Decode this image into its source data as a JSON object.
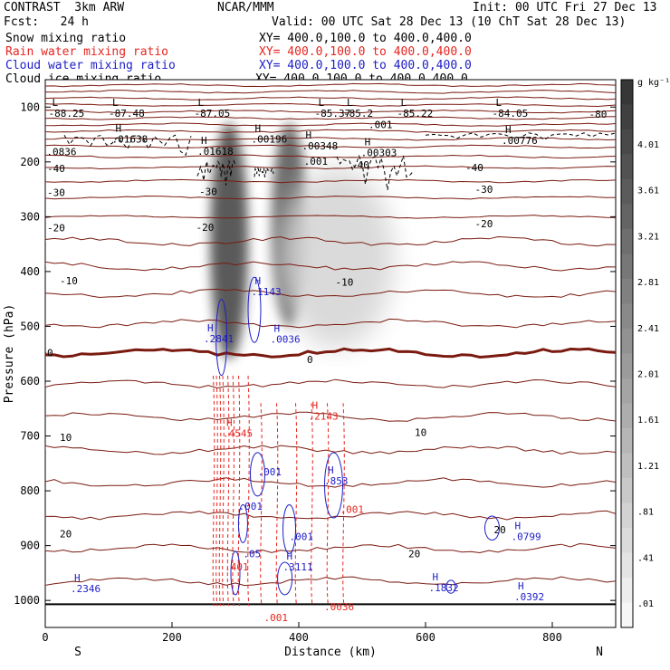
{
  "header": {
    "model": "CONTRAST  3km ARW",
    "org": "NCAR/MMM",
    "init": "Init: 00 UTC Fri 27 Dec 13",
    "fcst": "Fcst:   24 h",
    "valid": "Valid: 00 UTC Sat 28 Dec 13 (10 ChT Sat 28 Dec 13)"
  },
  "legend": [
    {
      "name": "Snow mixing ratio",
      "xy": "",
      "color": "#000000"
    },
    {
      "name": "Rain water mixing ratio",
      "xy": "XY= 400.0,100.0 to 400.0,400.0",
      "color": "#e8251f"
    },
    {
      "name": "Cloud water mixing ratio",
      "xy": "XY= 400.0,100.0 to 400.0,400.0",
      "color": "#1d1dc8"
    },
    {
      "name": "Cloud ice mixing ratio",
      "xy": "XY= 400.0,100.0 to 400.0,400.0",
      "color": "#000000"
    }
  ],
  "first_xy": "XY= 400.0,100.0 to 400.0,400.0",
  "colorbar": {
    "unit": "g kg⁻¹",
    "labels": [
      "4.01",
      "3.61",
      "3.21",
      "2.81",
      "2.41",
      "2.01",
      "1.61",
      "1.21",
      ".81",
      ".41",
      ".01"
    ]
  },
  "chart_data": {
    "type": "contour",
    "xlabel": "Distance (km)",
    "ylabel": "Pressure (hPa)",
    "xlim": [
      0,
      900
    ],
    "ylim": [
      1000,
      50
    ],
    "xticks": [
      "0",
      "200",
      "400",
      "600",
      "800"
    ],
    "xtick_values": [
      0,
      200,
      400,
      600,
      800
    ],
    "yticks": [
      "100",
      "200",
      "300",
      "400",
      "500",
      "600",
      "700",
      "800",
      "900",
      "1000"
    ],
    "ytick_values": [
      100,
      200,
      300,
      400,
      500,
      600,
      700,
      800,
      900,
      1000
    ],
    "left_end": "S",
    "right_end": "N",
    "temperature_isotherms": {
      "color": "#7a1a10",
      "levels_hPa": [
        60,
        72,
        84,
        96,
        108,
        120,
        132,
        144,
        158,
        172,
        190,
        210,
        235,
        265,
        300,
        345,
        390,
        440,
        495,
        548,
        605,
        665,
        725,
        785,
        845,
        905,
        965
      ],
      "labels": [
        {
          "text": "-80",
          "x": 855,
          "p": 113
        },
        {
          "text": "-40",
          "x": 0,
          "p": 212
        },
        {
          "text": "-40",
          "x": 480,
          "p": 205
        },
        {
          "text": "-40",
          "x": 660,
          "p": 210
        },
        {
          "text": "-30",
          "x": 0,
          "p": 256
        },
        {
          "text": "-30",
          "x": 240,
          "p": 254
        },
        {
          "text": "-30",
          "x": 675,
          "p": 250
        },
        {
          "text": "-20",
          "x": 0,
          "p": 320
        },
        {
          "text": "-20",
          "x": 235,
          "p": 319
        },
        {
          "text": "-20",
          "x": 675,
          "p": 313
        },
        {
          "text": "-10",
          "x": 20,
          "p": 417
        },
        {
          "text": "-10",
          "x": 455,
          "p": 419
        },
        {
          "text": "0",
          "x": 0,
          "p": 548
        },
        {
          "text": "0",
          "x": 410,
          "p": 560
        },
        {
          "text": "10",
          "x": 20,
          "p": 702
        },
        {
          "text": "10",
          "x": 580,
          "p": 693
        },
        {
          "text": "20",
          "x": 20,
          "p": 878
        },
        {
          "text": "20",
          "x": 705,
          "p": 871
        },
        {
          "text": "20",
          "x": 570,
          "p": 915
        }
      ]
    },
    "cloud_ice_extrema": [
      {
        "kind": "L",
        "value": "-88.25",
        "x": 5,
        "p": 113
      },
      {
        "kind": "L",
        "value": "-87.48",
        "x": 100,
        "p": 113
      },
      {
        "kind": "L",
        "value": "-87.05",
        "x": 235,
        "p": 113
      },
      {
        "kind": "L",
        "value": "-85.2",
        "x": 470,
        "p": 113
      },
      {
        "kind": "L",
        "value": "-85.37",
        "x": 425,
        "p": 113
      },
      {
        "kind": "L",
        "value": "-85.22",
        "x": 555,
        "p": 113
      },
      {
        "kind": "L",
        "value": "-84.05",
        "x": 705,
        "p": 113
      },
      {
        "kind": "H",
        "value": ".01638",
        "x": 105,
        "p": 160
      },
      {
        "kind": "H",
        "value": ".00196",
        "x": 325,
        "p": 160
      },
      {
        "kind": "H",
        "value": ".00348",
        "x": 405,
        "p": 172
      },
      {
        "kind": "H",
        "value": ".00776",
        "x": 720,
        "p": 162
      },
      {
        "kind": "H",
        "value": ".01618",
        "x": 240,
        "p": 182
      },
      {
        "kind": "H",
        "value": ".00303",
        "x": 498,
        "p": 185
      },
      {
        "kind": "",
        "value": ".0836",
        "x": 2,
        "p": 183
      },
      {
        "kind": "",
        "value": ".001",
        "x": 510,
        "p": 133
      },
      {
        "kind": "",
        "value": ".001",
        "x": 408,
        "p": 200
      }
    ],
    "cloud_water_extrema": [
      {
        "kind": "H",
        "value": ".1143",
        "x": 325,
        "p": 438
      },
      {
        "kind": "H",
        "value": ".2841",
        "x": 250,
        "p": 524
      },
      {
        "kind": "H",
        "value": ".0036",
        "x": 355,
        "p": 525
      },
      {
        "kind": "",
        "value": ".001",
        "x": 335,
        "p": 767
      },
      {
        "kind": "H",
        "value": ".853",
        "x": 440,
        "p": 783
      },
      {
        "kind": "",
        "value": ".001",
        "x": 305,
        "p": 830
      },
      {
        "kind": "",
        "value": ".001",
        "x": 385,
        "p": 885
      },
      {
        "kind": "H",
        "value": ".0799",
        "x": 735,
        "p": 885
      },
      {
        "kind": "",
        "value": ".05",
        "x": 312,
        "p": 916
      },
      {
        "kind": "H",
        "value": ".3111",
        "x": 375,
        "p": 940
      },
      {
        "kind": "H",
        "value": ".2346",
        "x": 40,
        "p": 980
      },
      {
        "kind": "H",
        "value": ".1832",
        "x": 605,
        "p": 978
      },
      {
        "kind": "H",
        "value": ".0392",
        "x": 740,
        "p": 995
      }
    ],
    "rain_water_extrema": [
      {
        "kind": "H",
        "value": ".2143",
        "x": 415,
        "p": 665
      },
      {
        "kind": "H",
        "value": ".4545",
        "x": 280,
        "p": 697
      },
      {
        "kind": "",
        "value": ".401",
        "x": 283,
        "p": 940
      },
      {
        "kind": "",
        "value": ".001",
        "x": 465,
        "p": 835
      },
      {
        "kind": "",
        "value": ".0036",
        "x": 440,
        "p": 1013
      },
      {
        "kind": "",
        "value": ".001",
        "x": 345,
        "p": 1033
      }
    ],
    "snow_plumes": [
      {
        "x": 290,
        "p_top": 130,
        "p_bottom": 560,
        "width_km": 30,
        "peak": 4.0
      },
      {
        "x": 385,
        "p_top": 130,
        "p_bottom": 500,
        "width_km": 28,
        "peak": 3.6
      },
      {
        "x": 460,
        "p_top": 210,
        "p_bottom": 540,
        "width_km": 90,
        "peak": 0.9
      }
    ]
  }
}
